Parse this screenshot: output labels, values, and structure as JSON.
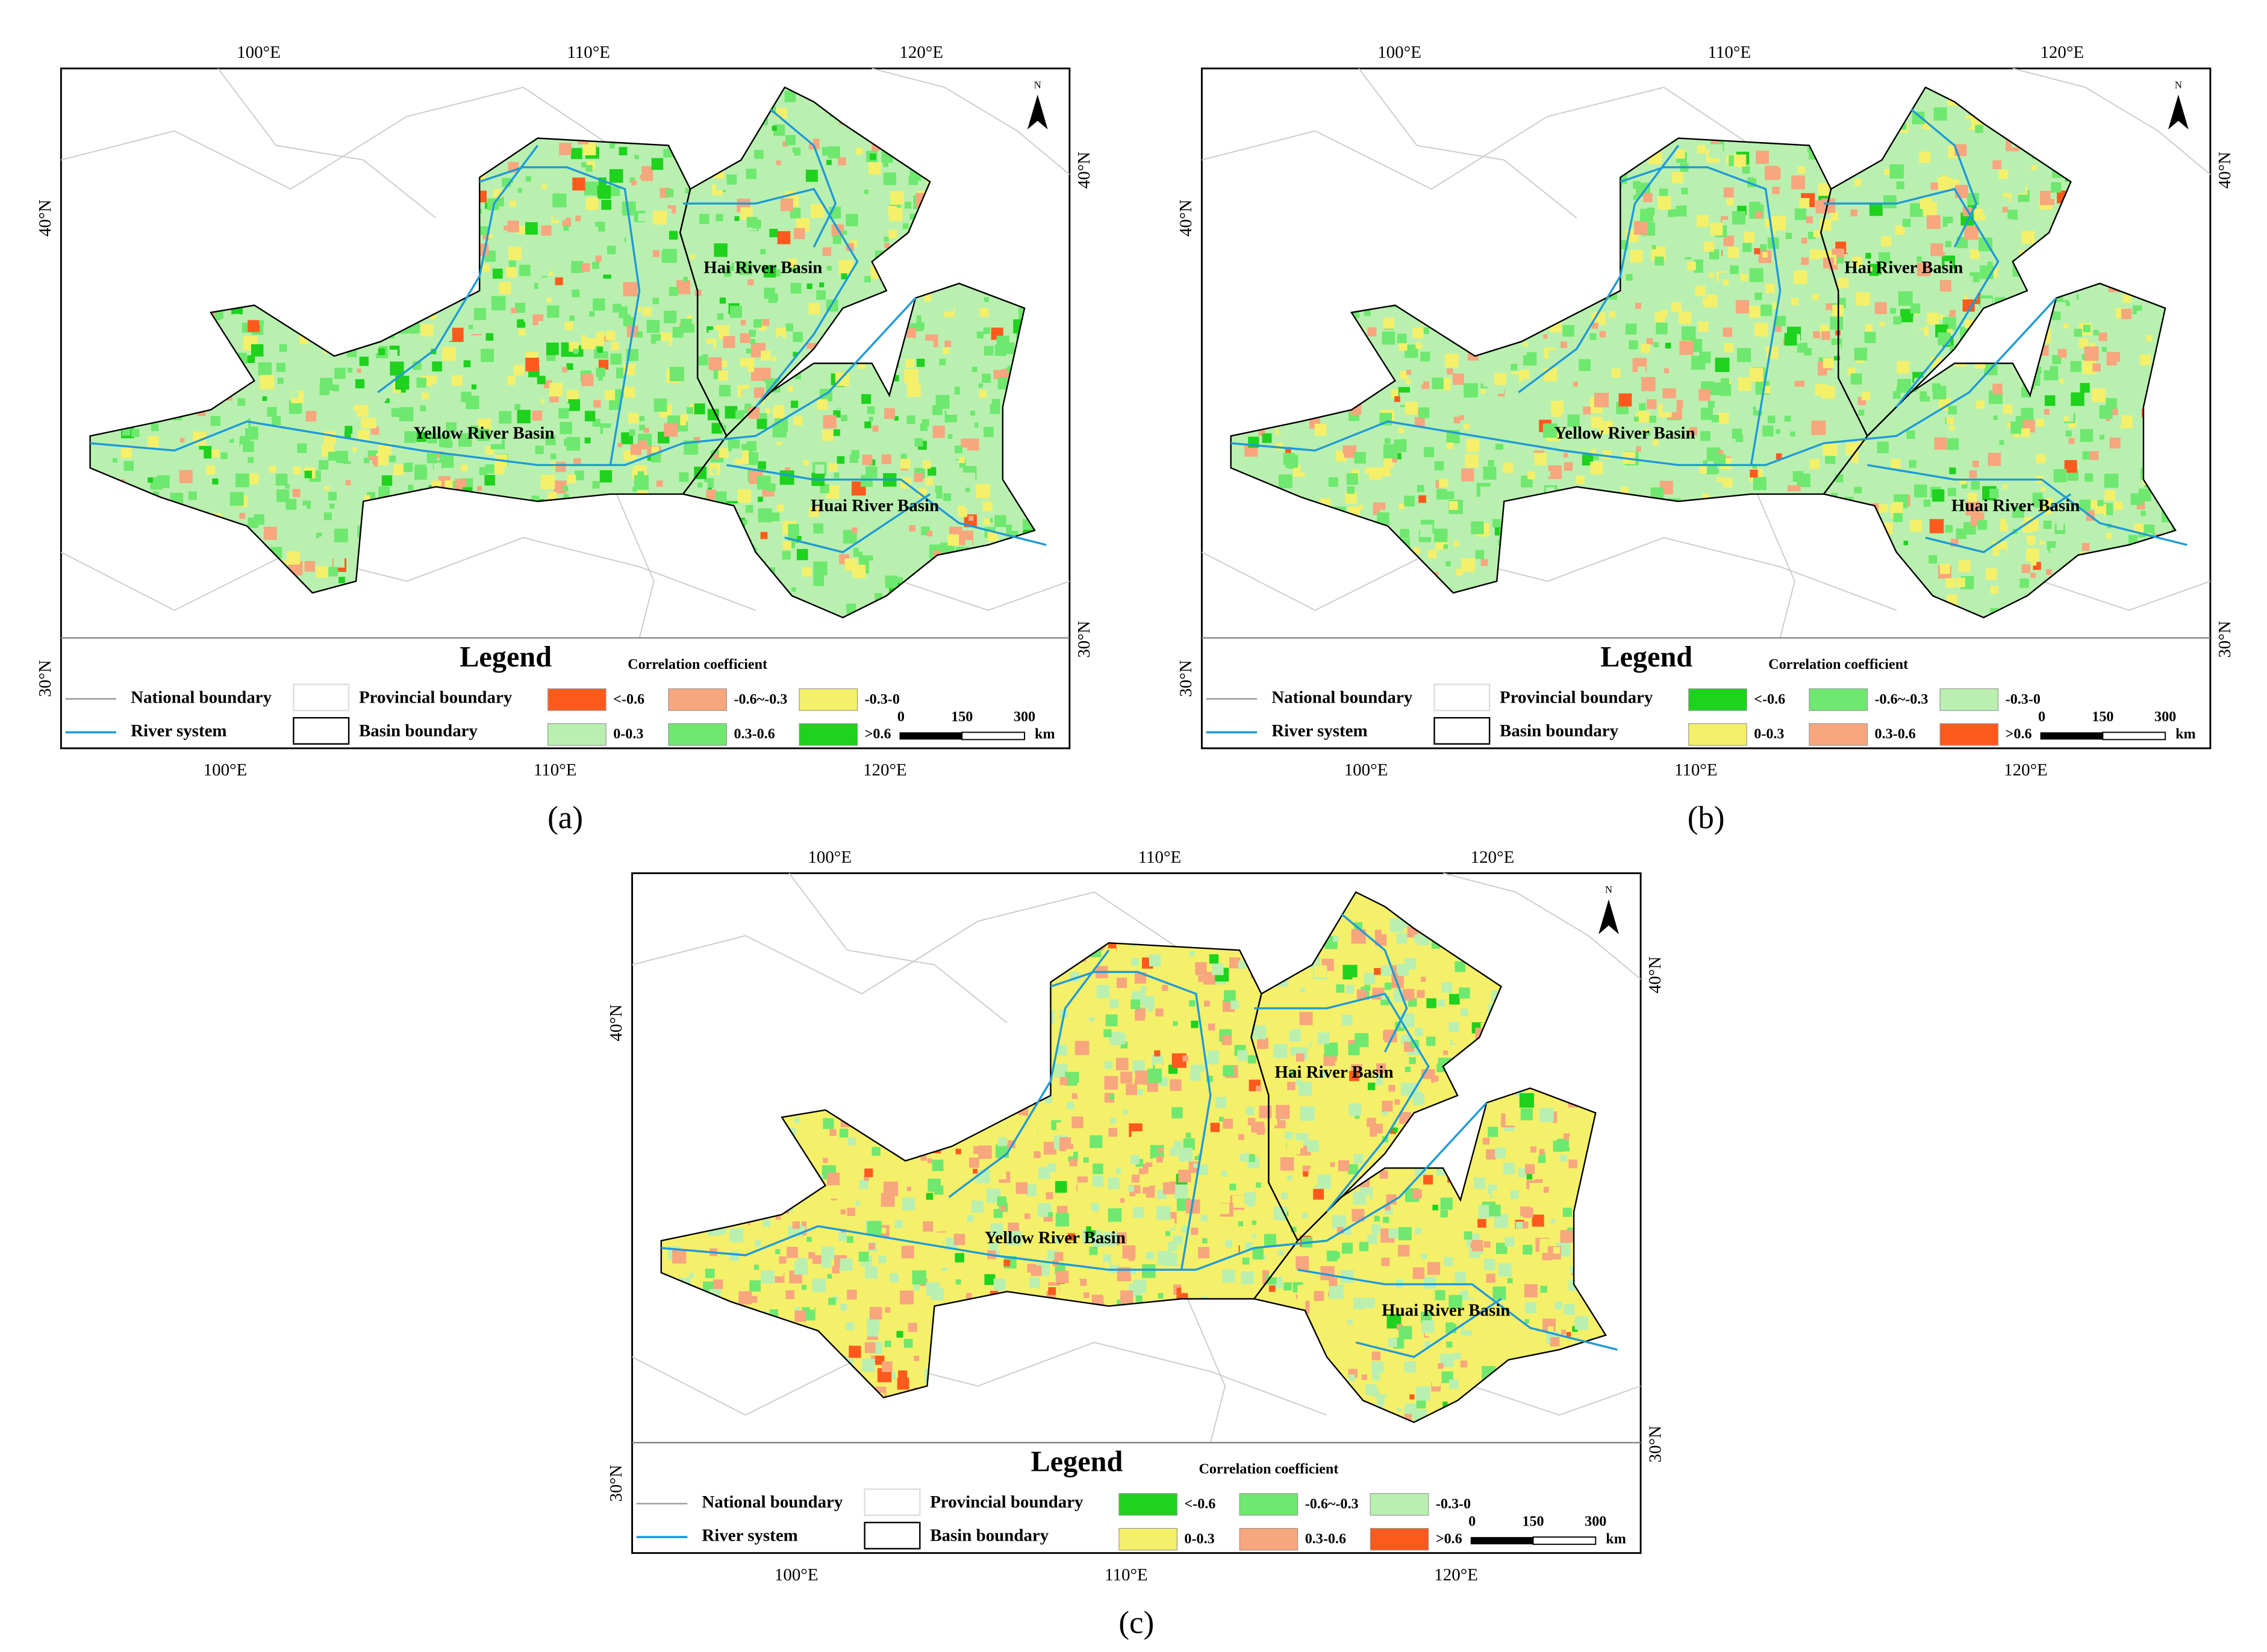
{
  "panels": [
    {
      "label": "(a)",
      "lon_top": [
        "100°E",
        "110°E",
        "120°E"
      ],
      "lon_bottom": [
        "100°E",
        "110°E",
        "120°E"
      ],
      "lat_left": [
        "40°N",
        "30°N"
      ],
      "lat_right": [
        "40°N",
        "30°N"
      ],
      "north": "N",
      "basins": [
        "Yellow  River  Basin",
        "Hai  River  Basin",
        "Huai  River  Basin"
      ],
      "legend": {
        "title": "Legend",
        "subtitle": "Correlation coefficient",
        "items": [
          "National boundary",
          "Provincial boundary",
          "River system",
          "Basin boundary"
        ],
        "classes": [
          {
            "label": "<-0.6",
            "color": "#ff5a1e"
          },
          {
            "label": "-0.6~-0.3",
            "color": "#f7a67e"
          },
          {
            "label": "-0.3-0",
            "color": "#f5f06a"
          },
          {
            "label": "0-0.3",
            "color": "#b9f0b0"
          },
          {
            "label": "0.3-0.6",
            "color": "#6ee86e"
          },
          {
            "label": ">0.6",
            "color": "#1ed21e"
          }
        ],
        "scale": [
          "0",
          "150",
          "300"
        ],
        "unit": "km"
      }
    },
    {
      "label": "(b)",
      "lon_top": [
        "100°E",
        "110°E",
        "120°E"
      ],
      "lon_bottom": [
        "100°E",
        "110°E",
        "120°E"
      ],
      "lat_left": [
        "40°N",
        "30°N"
      ],
      "lat_right": [
        "40°N",
        "30°N"
      ],
      "north": "N",
      "basins": [
        "Yellow  River  Basin",
        "Hai  River  Basin",
        "Huai  River  Basin"
      ],
      "legend": {
        "title": "Legend",
        "subtitle": "Correlation coefficient",
        "items": [
          "National boundary",
          "Provincial boundary",
          "River system",
          "Basin boundary"
        ],
        "classes": [
          {
            "label": "<-0.6",
            "color": "#1ed21e"
          },
          {
            "label": "-0.6~-0.3",
            "color": "#6ee86e"
          },
          {
            "label": "-0.3-0",
            "color": "#b9f0b0"
          },
          {
            "label": "0-0.3",
            "color": "#f5f06a"
          },
          {
            "label": "0.3-0.6",
            "color": "#f7a67e"
          },
          {
            "label": ">0.6",
            "color": "#ff5a1e"
          }
        ],
        "scale": [
          "0",
          "150",
          "300"
        ],
        "unit": "km"
      }
    },
    {
      "label": "(c)",
      "lon_top": [
        "100°E",
        "110°E",
        "120°E"
      ],
      "lon_bottom": [
        "100°E",
        "110°E",
        "120°E"
      ],
      "lat_left": [
        "40°N",
        "30°N"
      ],
      "lat_right": [
        "40°N",
        "30°N"
      ],
      "north": "N",
      "basins": [
        "Yellow  River  Basin",
        "Hai  River  Basin",
        "Huai  River  Basin"
      ],
      "legend": {
        "title": "Legend",
        "subtitle": "Correlation coefficient",
        "items": [
          "National boundary",
          "Provincial boundary",
          "River system",
          "Basin boundary"
        ],
        "classes": [
          {
            "label": "<-0.6",
            "color": "#1ed21e"
          },
          {
            "label": "-0.6~-0.3",
            "color": "#6ee86e"
          },
          {
            "label": "-0.3-0",
            "color": "#b9f0b0"
          },
          {
            "label": "0-0.3",
            "color": "#f5f06a"
          },
          {
            "label": "0.3-0.6",
            "color": "#f7a67e"
          },
          {
            "label": ">0.6",
            "color": "#ff5a1e"
          }
        ],
        "scale": [
          "0",
          "150",
          "300"
        ],
        "unit": "km"
      }
    }
  ]
}
